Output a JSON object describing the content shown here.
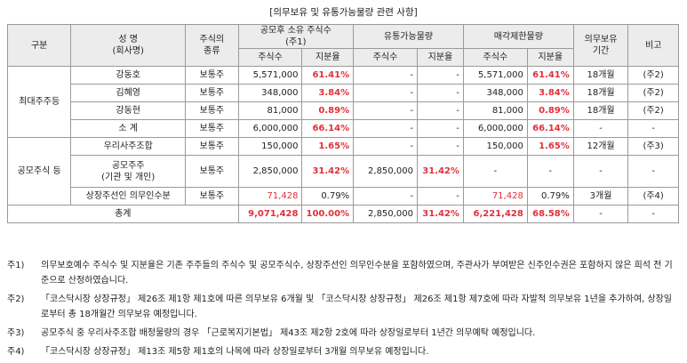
{
  "title": "[의무보유 및 유통가능물량 관련 사항]",
  "headers": {
    "group": "구분",
    "name": "성 명",
    "name_sub": "(회사명)",
    "stock_type": "주식의",
    "stock_type_sub": "종류",
    "after_ipo": "공모후 소유 주식수",
    "after_ipo_sub": "(주1)",
    "tradable": "유통가능물량",
    "restricted": "매각제한물량",
    "lockup": "의무보유",
    "lockup_sub": "기간",
    "remark": "비고",
    "shares": "주식수",
    "ratio": "지분율"
  },
  "groups": {
    "major": "최대주주등",
    "public": "공모주식 등"
  },
  "rows": [
    {
      "name": "강동호",
      "name2": "",
      "type": "보통주",
      "a_shares": "5,571,000",
      "a_ratio": "61.41%",
      "t_shares": "-",
      "t_ratio": "-",
      "r_shares": "5,571,000",
      "r_ratio": "61.41%",
      "lockup": "18개월",
      "remark": "(주2)"
    },
    {
      "name": "김혜영",
      "name2": "",
      "type": "보통주",
      "a_shares": "348,000",
      "a_ratio": "3.84%",
      "t_shares": "-",
      "t_ratio": "-",
      "r_shares": "348,000",
      "r_ratio": "3.84%",
      "lockup": "18개월",
      "remark": "(주2)"
    },
    {
      "name": "강동현",
      "name2": "",
      "type": "보통주",
      "a_shares": "81,000",
      "a_ratio": "0.89%",
      "t_shares": "-",
      "t_ratio": "-",
      "r_shares": "81,000",
      "r_ratio": "0.89%",
      "lockup": "18개월",
      "remark": "(주2)"
    },
    {
      "name": "소 계",
      "name2": "",
      "type": "보통주",
      "a_shares": "6,000,000",
      "a_ratio": "66.14%",
      "t_shares": "-",
      "t_ratio": "-",
      "r_shares": "6,000,000",
      "r_ratio": "66.14%",
      "lockup": "-",
      "remark": "-"
    },
    {
      "name": "우리사주조합",
      "name2": "",
      "type": "보통주",
      "a_shares": "150,000",
      "a_ratio": "1.65%",
      "t_shares": "-",
      "t_ratio": "-",
      "r_shares": "150,000",
      "r_ratio": "1.65%",
      "lockup": "12개월",
      "remark": "(주3)"
    },
    {
      "name": "공모주주",
      "name2": "(기관 및 개인)",
      "type": "보통주",
      "a_shares": "2,850,000",
      "a_ratio": "31.42%",
      "t_shares": "2,850,000",
      "t_ratio": "31.42%",
      "r_shares": "-",
      "r_ratio": "-",
      "lockup": "-",
      "remark": "-"
    },
    {
      "name": "상장주선인 의무인수분",
      "name2": "",
      "type": "보통주",
      "a_shares": "71,428",
      "a_ratio": "0.79%",
      "t_shares": "-",
      "t_ratio": "-",
      "r_shares": "71,428",
      "r_ratio": "0.79%",
      "lockup": "3개월",
      "remark": "(주4)"
    }
  ],
  "total": {
    "label": "총계",
    "a_shares": "9,071,428",
    "a_ratio": "100.00%",
    "t_shares": "2,850,000",
    "t_ratio": "31.42%",
    "r_shares": "6,221,428",
    "r_ratio": "68.58%",
    "lockup": "-",
    "remark": "-"
  },
  "notes": [
    {
      "key": "주1)",
      "text": "의무보호예수 주식수 및 지분율은 기존 주주들의 주식수 및 공모주식수, 상장주선인 의무인수분을 포함하였으며, 주관사가 부여받은 신주인수권은 포함하지 않은 희석 전 기준으로 산정하였습니다."
    },
    {
      "key": "주2)",
      "text": "「코스닥시장 상장규정」 제26조 제1항 제1호에 따른 의무보유 6개월 및 「코스닥시장 상장규정」 제26조 제1항 제7호에 따라 자발적 의무보유 1년을 추가하여, 상장일로부터 총 18개월간 의무보유 예정입니다."
    },
    {
      "key": "주3)",
      "text": "공모주식 중 우리사주조합 배정물량의 경우 「근로복지기본법」 제43조 제2항 2호에 따라 상장일로부터 1년간 의무예탁 예정입니다."
    },
    {
      "key": "주4)",
      "text": "「코스닥시장 상장규정」 제13조 제5항 제1호의 나목에 따라 상장일로부터 3개월 의무보유 예정입니다."
    }
  ]
}
